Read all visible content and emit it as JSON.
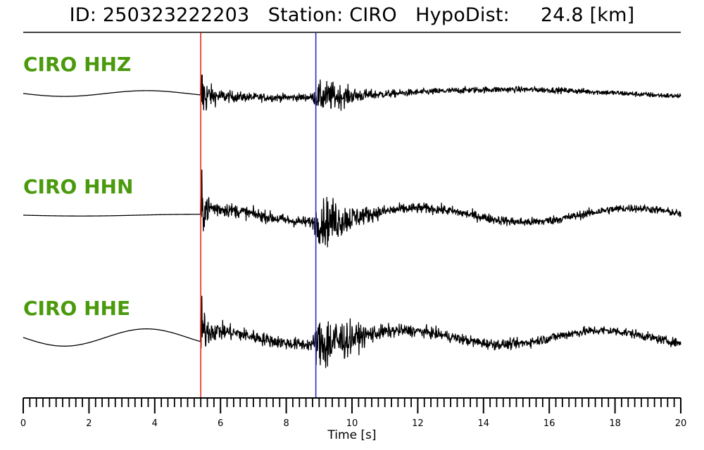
{
  "header": {
    "title": "ID: 250323222203   Station: CIRO   HypoDist:     24.8 [km]"
  },
  "colors": {
    "trace": "#000000",
    "label": "#4a9a0c",
    "p_pick": "#e8281c",
    "s_pick": "#2a2ad0"
  },
  "chart_data": {
    "type": "line",
    "title": "ID: 250323222203   Station: CIRO   HypoDist:     24.8 [km]",
    "xlabel": "Time [s]",
    "ylabel": "",
    "xlim": [
      0,
      20
    ],
    "grid": false,
    "x_major_ticks": [
      0,
      2,
      4,
      6,
      8,
      10,
      12,
      14,
      16,
      18,
      20
    ],
    "x_tick_labels": [
      "0",
      "2",
      "4",
      "6",
      "8",
      "10",
      "12",
      "14",
      "16",
      "18",
      "20"
    ],
    "x_minor_tick_step": 0.2,
    "picks": [
      {
        "phase": "P",
        "time": 5.4,
        "color": "#e8281c"
      },
      {
        "phase": "S",
        "time": 8.9,
        "color": "#2a2ad0"
      }
    ],
    "series": [
      {
        "name": "CIRO HHZ",
        "pre_event_wave": {
          "amplitude": 0.05,
          "period": 5.0,
          "phase": 0.0
        },
        "event_arrival": 5.4,
        "p_burst_amplitude": 1.0,
        "s_burst_amplitude": 0.45,
        "coda_noise": 0.12,
        "long_period": [
          {
            "amp": 0.07,
            "period": 14.0,
            "phase": 1.2
          }
        ]
      },
      {
        "name": "CIRO HHN",
        "pre_event_wave": {
          "amplitude": 0.015,
          "period": 7.0,
          "phase": 0.0
        },
        "event_arrival": 5.4,
        "p_burst_amplitude": 0.75,
        "s_burst_amplitude": 0.7,
        "coda_noise": 0.18,
        "long_period": [
          {
            "amp": 0.12,
            "period": 6.5,
            "phase": 2.5
          }
        ]
      },
      {
        "name": "CIRO HHE",
        "pre_event_wave": {
          "amplitude": 0.15,
          "period": 5.0,
          "phase": 0.0
        },
        "event_arrival": 5.4,
        "p_burst_amplitude": 0.8,
        "s_burst_amplitude": 0.9,
        "coda_noise": 0.2,
        "long_period": [
          {
            "amp": 0.12,
            "period": 6.0,
            "phase": 2.0
          }
        ]
      }
    ]
  }
}
